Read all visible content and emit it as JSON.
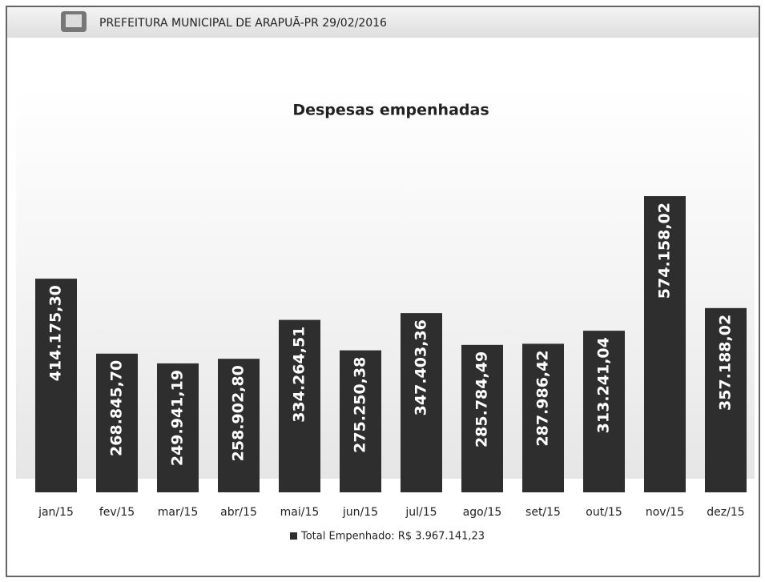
{
  "header": {
    "title": "PREFEITURA MUNICIPAL DE ARAPUÃ-PR 29/02/2016"
  },
  "chart_data": {
    "type": "bar",
    "title": "Despesas empenhadas",
    "categories": [
      "jan/15",
      "fev/15",
      "mar/15",
      "abr/15",
      "mai/15",
      "jun/15",
      "jul/15",
      "ago/15",
      "set/15",
      "out/15",
      "nov/15",
      "dez/15"
    ],
    "series": [
      {
        "name": "Total Empenhado: R$ 3.967.141,23",
        "color": "#2e2e2e",
        "values": [
          414175.3,
          268845.7,
          249941.19,
          258902.8,
          334264.51,
          275250.38,
          347403.36,
          285784.49,
          287986.42,
          313241.04,
          574158.02,
          357188.02
        ],
        "value_labels": [
          "414.175,30",
          "268.845,70",
          "249.941,19",
          "258.902,80",
          "334.264,51",
          "275.250,38",
          "347.403,36",
          "285.784,49",
          "287.986,42",
          "313.241,04",
          "574.158,02",
          "357.188,02"
        ]
      }
    ],
    "legend": "bottom"
  }
}
